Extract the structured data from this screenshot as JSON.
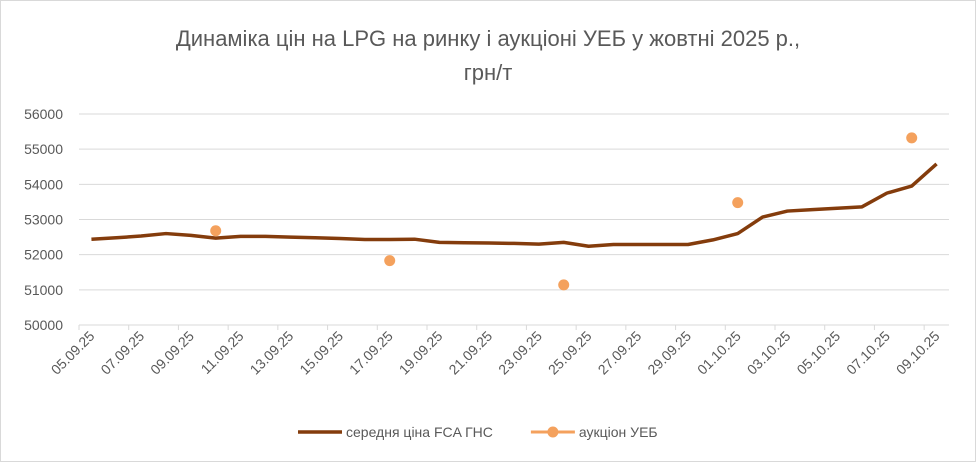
{
  "chart_data": {
    "type": "line",
    "title": [
      "Динаміка цін на LPG на ринку і аукціоні УЕБ у жовтні 2025 р.,",
      "грн/т"
    ],
    "categories": [
      "05.09.25",
      null,
      "07.09.25",
      null,
      "09.09.25",
      null,
      "11.09.25",
      null,
      "13.09.25",
      null,
      "15.09.25",
      null,
      "17.09.25",
      null,
      "19.09.25",
      null,
      "21.09.25",
      null,
      "23.09.25",
      null,
      "25.09.25",
      null,
      "27.09.25",
      null,
      "29.09.25",
      null,
      "01.10.25",
      null,
      "03.10.25",
      null,
      "05.10.25",
      null,
      "07.10.25",
      null,
      "09.10.25"
    ],
    "series": [
      {
        "name": "середня ціна FCA ГНС",
        "color": "#843c0c",
        "style": "line",
        "values": [
          52440,
          52480,
          52530,
          52600,
          52550,
          52470,
          52520,
          52520,
          52500,
          52480,
          52460,
          52430,
          52430,
          52440,
          52350,
          52340,
          52330,
          52320,
          52300,
          52350,
          52240,
          52290,
          52290,
          52290,
          52290,
          52420,
          52600,
          53070,
          53240,
          53280,
          53320,
          53360,
          53750,
          53950,
          54580
        ]
      },
      {
        "name": "аукціон УЕБ",
        "color": "#f4a15d",
        "style": "marker",
        "values": [
          null,
          null,
          null,
          null,
          null,
          52680,
          null,
          null,
          null,
          null,
          null,
          null,
          51830,
          null,
          null,
          null,
          null,
          null,
          null,
          51140,
          null,
          null,
          null,
          null,
          null,
          null,
          53480,
          null,
          null,
          null,
          null,
          null,
          null,
          55320,
          null
        ]
      }
    ],
    "ylim": [
      50000,
      56000
    ],
    "yticks": [
      50000,
      51000,
      52000,
      53000,
      54000,
      55000,
      56000
    ],
    "grid": true,
    "legend": "bottom"
  }
}
